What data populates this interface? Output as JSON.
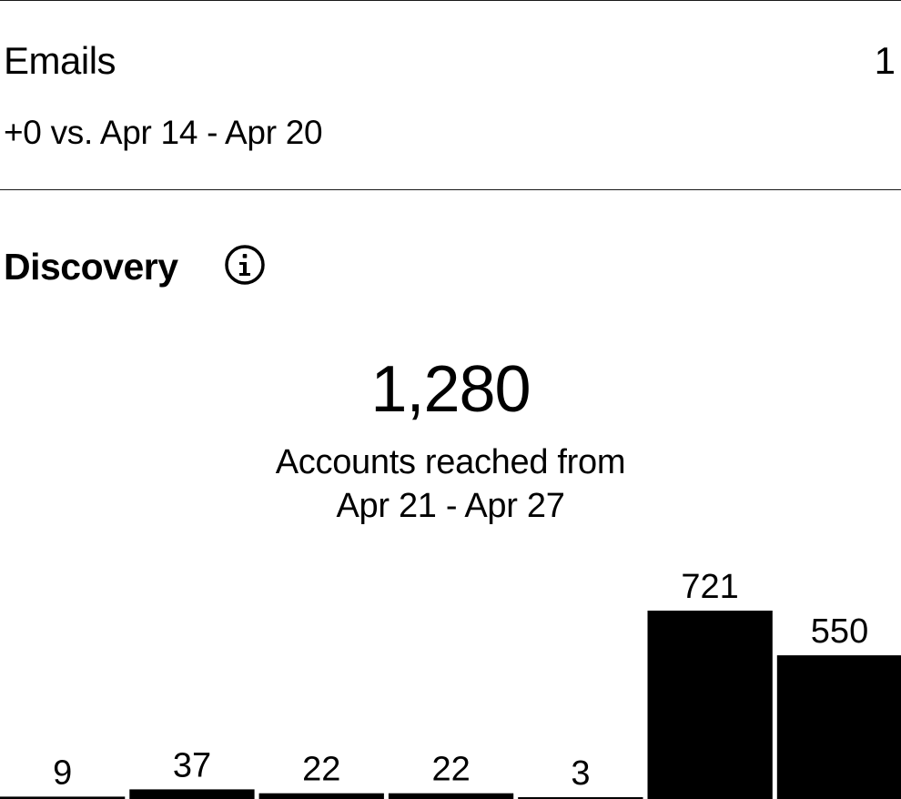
{
  "emails": {
    "label": "Emails",
    "value": "1",
    "comparison": "+0 vs. Apr 14 - Apr 20"
  },
  "discovery": {
    "title": "Discovery",
    "info_icon": "info-icon",
    "accounts_reached": "1,280",
    "caption_line1": "Accounts reached from",
    "caption_line2": "Apr 21 - Apr 27"
  },
  "chart_data": {
    "type": "bar",
    "values": [
      9,
      37,
      22,
      22,
      3,
      721,
      550
    ],
    "bar_color": "#000000"
  }
}
